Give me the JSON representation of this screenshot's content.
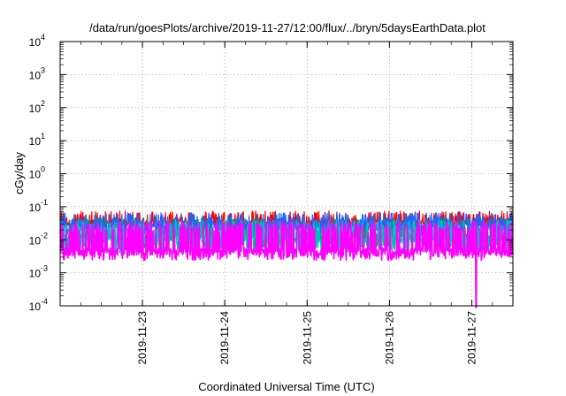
{
  "chart_data": {
    "type": "line",
    "title": "/data/run/goesPlots/archive/2019-11-27/12:00/flux/../bryn/5daysEarthData.plot",
    "xlabel": "Coordinated Universal Time (UTC)",
    "ylabel": "cGy/day",
    "yscale": "log",
    "ylim": [
      0.0001,
      10000
    ],
    "xlim": [
      "2019-11-22T00:00",
      "2019-11-27T12:00"
    ],
    "grid": true,
    "legend": "none",
    "x_tick_labels": [
      "2019-11-23",
      "2019-11-24",
      "2019-11-25",
      "2019-11-26",
      "2019-11-27"
    ],
    "x_tick_dates": [
      "2019-11-23T00:00",
      "2019-11-24T00:00",
      "2019-11-25T00:00",
      "2019-11-26T00:00",
      "2019-11-27T00:00"
    ],
    "y_ticks": [
      {
        "base": "10",
        "exp": "-4",
        "value": 0.0001
      },
      {
        "base": "10",
        "exp": "-3",
        "value": 0.001
      },
      {
        "base": "10",
        "exp": "-2",
        "value": 0.01
      },
      {
        "base": "10",
        "exp": "-1",
        "value": 0.1
      },
      {
        "base": "10",
        "exp": "0",
        "value": 1
      },
      {
        "base": "10",
        "exp": "1",
        "value": 10
      },
      {
        "base": "10",
        "exp": "2",
        "value": 100
      },
      {
        "base": "10",
        "exp": "3",
        "value": 1000
      },
      {
        "base": "10",
        "exp": "4",
        "value": 10000
      }
    ],
    "series": [
      {
        "color": "#ff0000",
        "base": 0.032,
        "low": 0.028,
        "high": 0.075,
        "x": [
          "2019-11-22T00:00",
          "2019-11-27T12:00"
        ],
        "y": [
          0.032,
          0.032
        ]
      },
      {
        "color": "#00a060",
        "base": 0.012,
        "low": 0.006,
        "high": 0.045,
        "x": [
          "2019-11-22T00:00",
          "2019-11-27T12:00"
        ],
        "y": [
          0.012,
          0.012
        ]
      },
      {
        "color": "#1e64ff",
        "base": 0.025,
        "low": 0.018,
        "high": 0.065,
        "x": [
          "2019-11-22T00:00",
          "2019-11-27T12:00"
        ],
        "y": [
          0.025,
          0.025
        ]
      },
      {
        "color": "#00c0c0",
        "base": 0.01,
        "low": 0.005,
        "high": 0.04,
        "x": [
          "2019-11-22T00:00",
          "2019-11-27T12:00"
        ],
        "y": [
          0.01,
          0.01
        ]
      },
      {
        "color": "#ff00ff",
        "base": 0.0045,
        "low": 0.003,
        "high": 0.035,
        "x": [
          "2019-11-22T00:00",
          "2019-11-27T12:00"
        ],
        "y": [
          0.0045,
          0.0045
        ]
      }
    ],
    "annotations": [
      {
        "series_color": "#ff00ff",
        "x": "2019-11-27T01:10",
        "y": 0.0001,
        "note": "drop below axis minimum"
      }
    ]
  }
}
